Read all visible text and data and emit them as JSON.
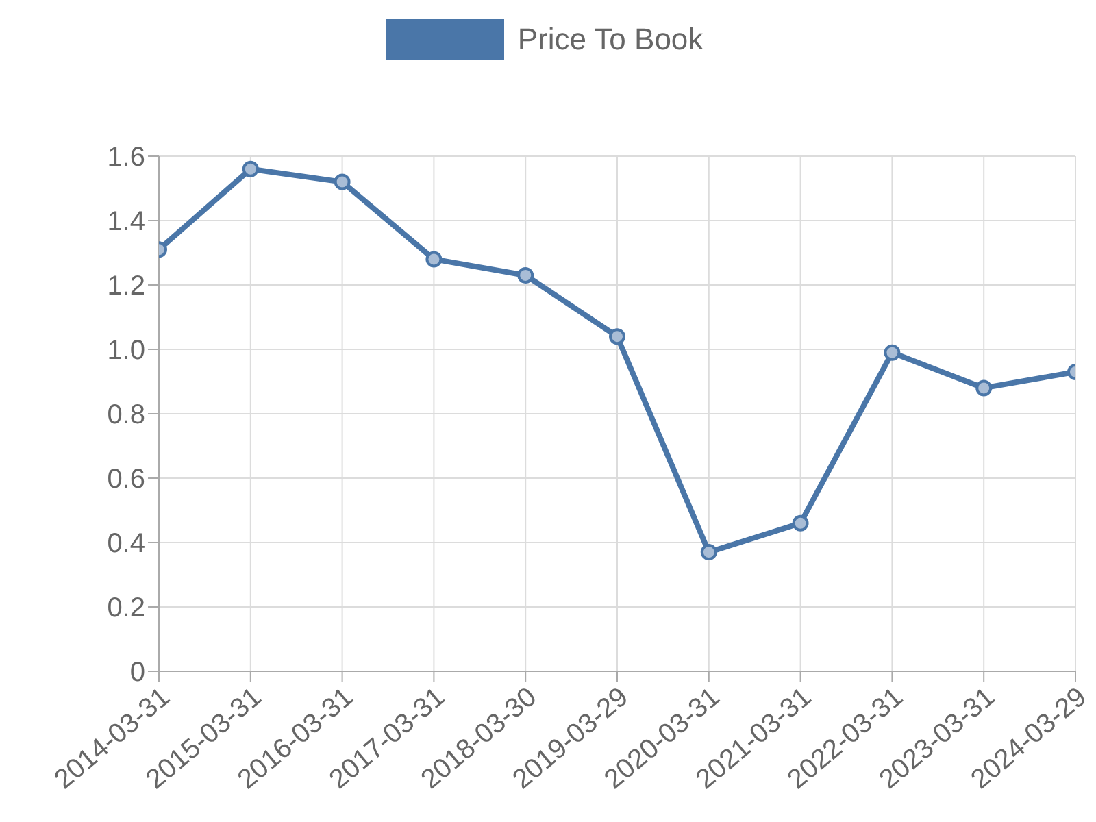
{
  "chart_data": {
    "type": "line",
    "categories": [
      "2014-03-31",
      "2015-03-31",
      "2016-03-31",
      "2017-03-31",
      "2018-03-30",
      "2019-03-29",
      "2020-03-31",
      "2021-03-31",
      "2022-03-31",
      "2023-03-31",
      "2024-03-29"
    ],
    "series": [
      {
        "name": "Price To Book",
        "color": "#4a76a8",
        "values": [
          1.31,
          1.56,
          1.52,
          1.28,
          1.23,
          1.04,
          0.37,
          0.46,
          0.99,
          0.88,
          0.93
        ]
      }
    ],
    "ylim": [
      0,
      1.6
    ],
    "yticks": [
      0,
      0.2,
      0.4,
      0.6,
      0.8,
      {
        "value": 1,
        "label": "1.0"
      },
      1.2,
      1.4,
      1.6
    ],
    "grid": true,
    "legend": "top",
    "marker": "circle",
    "line_style": "solid"
  }
}
